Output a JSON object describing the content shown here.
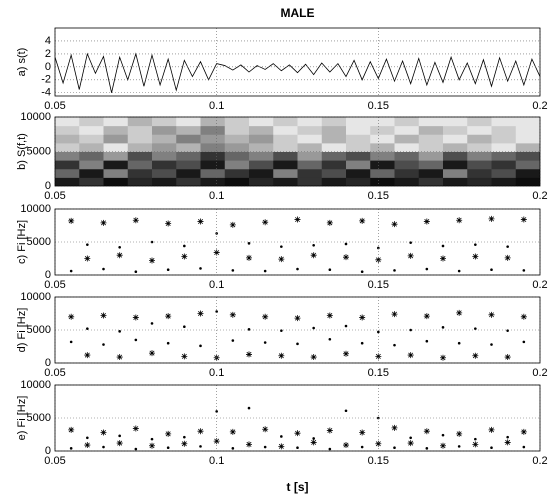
{
  "chart_data": [
    {
      "type": "line",
      "title": "MALE",
      "ylabel": "a) s(t)",
      "xlim": [
        0.05,
        0.2
      ],
      "ylim": [
        -4.5,
        6
      ],
      "xticks": [
        0.05,
        0.1,
        0.15,
        0.2
      ],
      "yticks": [
        -4,
        -2,
        0,
        2,
        4
      ],
      "grid": true,
      "color": "#000000",
      "x": [
        0.05,
        0.0525,
        0.055,
        0.0575,
        0.06,
        0.0625,
        0.065,
        0.0675,
        0.07,
        0.0725,
        0.075,
        0.0775,
        0.08,
        0.0825,
        0.085,
        0.0875,
        0.09,
        0.0925,
        0.095,
        0.0975,
        0.1,
        0.1025,
        0.105,
        0.1075,
        0.11,
        0.1125,
        0.115,
        0.1175,
        0.12,
        0.1225,
        0.125,
        0.1275,
        0.13,
        0.1325,
        0.135,
        0.1375,
        0.14,
        0.1425,
        0.145,
        0.1475,
        0.15,
        0.1525,
        0.155,
        0.1575,
        0.16,
        0.1625,
        0.165,
        0.1675,
        0.17,
        0.1725,
        0.175,
        0.1775,
        0.18,
        0.1825,
        0.185,
        0.1875,
        0.19,
        0.1925,
        0.195,
        0.1975,
        0.2
      ],
      "values": [
        1.5,
        -2.5,
        1.8,
        -3.5,
        2,
        -1,
        1.6,
        -4,
        1.5,
        -2,
        2,
        -3,
        1.8,
        -2.8,
        1.2,
        -3.6,
        1,
        -1.5,
        0.8,
        -2,
        0.5,
        0.2,
        -0.5,
        0.3,
        -0.8,
        0.2,
        -0.4,
        0.5,
        -0.6,
        0.3,
        -0.9,
        0.4,
        -1.2,
        0.6,
        -0.8,
        0.5,
        -1.5,
        1,
        -2,
        0.8,
        -1.8,
        1.2,
        -2.2,
        0.9,
        -2.6,
        1.3,
        -2.8,
        0.7,
        -2.4,
        1.5,
        -2,
        0.6,
        -2.6,
        1.1,
        -3,
        1.4,
        -2.2,
        0.9,
        -2.8,
        1.2,
        -1.5
      ]
    },
    {
      "type": "heatmap",
      "ylabel": "b) S(f,t)",
      "xlim": [
        0.05,
        0.2
      ],
      "ylim": [
        0,
        10000
      ],
      "xticks": [
        0.05,
        0.1,
        0.15,
        0.2
      ],
      "yticks": [
        0,
        5000,
        10000
      ],
      "grid": true,
      "z": [
        [
          0.9,
          0.8,
          0.95,
          0.85,
          0.9,
          0.8,
          0.9,
          0.95,
          0.85,
          0.9,
          0.8,
          0.9,
          0.85,
          0.95,
          0.9,
          0.8,
          0.9,
          0.85,
          0.9,
          0.95
        ],
        [
          0.6,
          0.9,
          0.5,
          0.8,
          0.7,
          0.9,
          0.6,
          0.8,
          0.9,
          0.5,
          0.8,
          0.7,
          0.9,
          0.6,
          0.8,
          0.9,
          0.5,
          0.8,
          0.7,
          0.9
        ],
        [
          0.8,
          0.5,
          0.9,
          0.6,
          0.8,
          0.7,
          0.9,
          0.5,
          0.7,
          0.9,
          0.6,
          0.8,
          0.5,
          0.9,
          0.7,
          0.6,
          0.9,
          0.7,
          0.8,
          0.6
        ],
        [
          0.5,
          0.6,
          0.4,
          0.7,
          0.5,
          0.6,
          0.8,
          0.6,
          0.5,
          0.7,
          0.4,
          0.6,
          0.7,
          0.5,
          0.6,
          0.4,
          0.7,
          0.5,
          0.6,
          0.7
        ],
        [
          0.2,
          0.3,
          0.1,
          0.3,
          0.4,
          0.3,
          0.5,
          0.4,
          0.3,
          0.2,
          0.3,
          0.1,
          0.2,
          0.3,
          0.1,
          0.2,
          0.3,
          0.2,
          0.1,
          0.3
        ],
        [
          0.3,
          0.2,
          0.4,
          0.2,
          0.3,
          0.5,
          0.4,
          0.3,
          0.4,
          0.2,
          0.1,
          0.3,
          0.2,
          0.1,
          0.3,
          0.2,
          0.1,
          0.3,
          0.2,
          0.1
        ],
        [
          0.2,
          0.1,
          0.3,
          0.2,
          0.4,
          0.3,
          0.5,
          0.2,
          0.3,
          0.1,
          0.2,
          0.3,
          0.1,
          0.2,
          0.1,
          0.3,
          0.2,
          0.1,
          0.2,
          0.1
        ],
        [
          0.1,
          0.2,
          0.1,
          0.3,
          0.2,
          0.1,
          0.3,
          0.2,
          0.1,
          0.2,
          0.1,
          0.2,
          0.1,
          0.1,
          0.2,
          0.1,
          0.1,
          0.2,
          0.1,
          0.1
        ]
      ]
    },
    {
      "type": "scatter",
      "ylabel": "c) Fi [Hz]",
      "xlim": [
        0.05,
        0.2
      ],
      "ylim": [
        0,
        10000
      ],
      "xticks": [
        0.05,
        0.1,
        0.15,
        0.2
      ],
      "yticks": [
        0,
        5000,
        10000
      ],
      "grid": true,
      "series": [
        {
          "marker": "star",
          "color": "#000000",
          "x": [
            0.055,
            0.065,
            0.075,
            0.085,
            0.095,
            0.105,
            0.115,
            0.125,
            0.135,
            0.145,
            0.155,
            0.165,
            0.175,
            0.185,
            0.195,
            0.06,
            0.07,
            0.08,
            0.09,
            0.1,
            0.11,
            0.12,
            0.13,
            0.14,
            0.15,
            0.16,
            0.17,
            0.18,
            0.19
          ],
          "y": [
            8200,
            7900,
            8300,
            7800,
            8100,
            7600,
            8000,
            8400,
            7900,
            8200,
            7700,
            8100,
            8300,
            8500,
            8400,
            2500,
            3000,
            2200,
            2800,
            3400,
            2600,
            2400,
            3000,
            2700,
            2300,
            2900,
            2500,
            2800,
            2600
          ]
        },
        {
          "marker": "dot",
          "color": "#000000",
          "x": [
            0.055,
            0.065,
            0.075,
            0.085,
            0.095,
            0.105,
            0.115,
            0.125,
            0.135,
            0.145,
            0.155,
            0.165,
            0.175,
            0.185,
            0.195,
            0.06,
            0.07,
            0.08,
            0.09,
            0.1,
            0.11,
            0.12,
            0.13,
            0.14,
            0.15,
            0.16,
            0.17,
            0.18,
            0.19
          ],
          "y": [
            600,
            900,
            500,
            800,
            1000,
            700,
            600,
            900,
            800,
            500,
            700,
            900,
            600,
            800,
            700,
            4600,
            4200,
            5000,
            4400,
            6300,
            4800,
            4300,
            4500,
            4700,
            4100,
            4900,
            4400,
            4600,
            4300
          ]
        }
      ]
    },
    {
      "type": "scatter",
      "ylabel": "d) Fi [Hz]",
      "xlim": [
        0.05,
        0.2
      ],
      "ylim": [
        0,
        10000
      ],
      "xticks": [
        0.05,
        0.1,
        0.15,
        0.2
      ],
      "yticks": [
        0,
        5000,
        10000
      ],
      "grid": true,
      "series": [
        {
          "marker": "star",
          "color": "#000000",
          "x": [
            0.055,
            0.065,
            0.075,
            0.085,
            0.095,
            0.105,
            0.115,
            0.125,
            0.135,
            0.145,
            0.155,
            0.165,
            0.175,
            0.185,
            0.195,
            0.06,
            0.07,
            0.08,
            0.09,
            0.1,
            0.11,
            0.12,
            0.13,
            0.14,
            0.15,
            0.16,
            0.17,
            0.18,
            0.19
          ],
          "y": [
            7000,
            7200,
            6900,
            7100,
            7500,
            7300,
            7000,
            6800,
            7200,
            6900,
            7400,
            7100,
            7600,
            7300,
            7000,
            1200,
            900,
            1500,
            1000,
            800,
            1300,
            1100,
            900,
            1400,
            1000,
            1200,
            800,
            1100,
            900
          ]
        },
        {
          "marker": "dot",
          "color": "#000000",
          "x": [
            0.055,
            0.065,
            0.075,
            0.085,
            0.095,
            0.105,
            0.115,
            0.125,
            0.135,
            0.145,
            0.155,
            0.165,
            0.175,
            0.185,
            0.195,
            0.06,
            0.07,
            0.08,
            0.09,
            0.1,
            0.11,
            0.12,
            0.13,
            0.14,
            0.15,
            0.16,
            0.17,
            0.18,
            0.19
          ],
          "y": [
            3200,
            2800,
            3500,
            3000,
            2600,
            3400,
            3100,
            2900,
            3600,
            3000,
            2700,
            3300,
            3000,
            2800,
            3200,
            5200,
            4800,
            6000,
            5500,
            7800,
            5100,
            4900,
            5300,
            5600,
            4700,
            5000,
            5400,
            5200,
            4900
          ]
        }
      ]
    },
    {
      "type": "scatter",
      "ylabel": "e) Fi [Hz]",
      "xlabel": "t [s]",
      "xlim": [
        0.05,
        0.2
      ],
      "ylim": [
        0,
        10000
      ],
      "xticks": [
        0.05,
        0.1,
        0.15,
        0.2
      ],
      "yticks": [
        0,
        5000,
        10000
      ],
      "grid": true,
      "series": [
        {
          "marker": "star",
          "color": "#000000",
          "x": [
            0.055,
            0.065,
            0.075,
            0.085,
            0.095,
            0.105,
            0.115,
            0.125,
            0.135,
            0.145,
            0.155,
            0.165,
            0.175,
            0.185,
            0.195,
            0.06,
            0.07,
            0.08,
            0.09,
            0.1,
            0.11,
            0.12,
            0.13,
            0.14,
            0.15,
            0.16,
            0.17,
            0.18,
            0.19
          ],
          "y": [
            3200,
            2800,
            3400,
            2600,
            3000,
            2900,
            3300,
            2700,
            3100,
            2800,
            3500,
            3000,
            2600,
            3200,
            2900,
            900,
            1200,
            800,
            1100,
            1500,
            1000,
            700,
            1300,
            900,
            1100,
            1200,
            800,
            1000,
            1300
          ]
        },
        {
          "marker": "dot",
          "color": "#000000",
          "x": [
            0.055,
            0.065,
            0.075,
            0.085,
            0.095,
            0.105,
            0.115,
            0.125,
            0.135,
            0.145,
            0.155,
            0.165,
            0.175,
            0.185,
            0.195,
            0.06,
            0.07,
            0.08,
            0.09,
            0.1,
            0.11,
            0.12,
            0.13,
            0.14,
            0.15,
            0.16,
            0.17,
            0.18,
            0.19
          ],
          "y": [
            400,
            600,
            300,
            500,
            700,
            400,
            600,
            500,
            300,
            600,
            500,
            400,
            700,
            500,
            600,
            2000,
            2300,
            1800,
            2100,
            6000,
            6500,
            2200,
            1900,
            6100,
            5000,
            2000,
            2400,
            1800,
            2100
          ]
        }
      ]
    }
  ]
}
